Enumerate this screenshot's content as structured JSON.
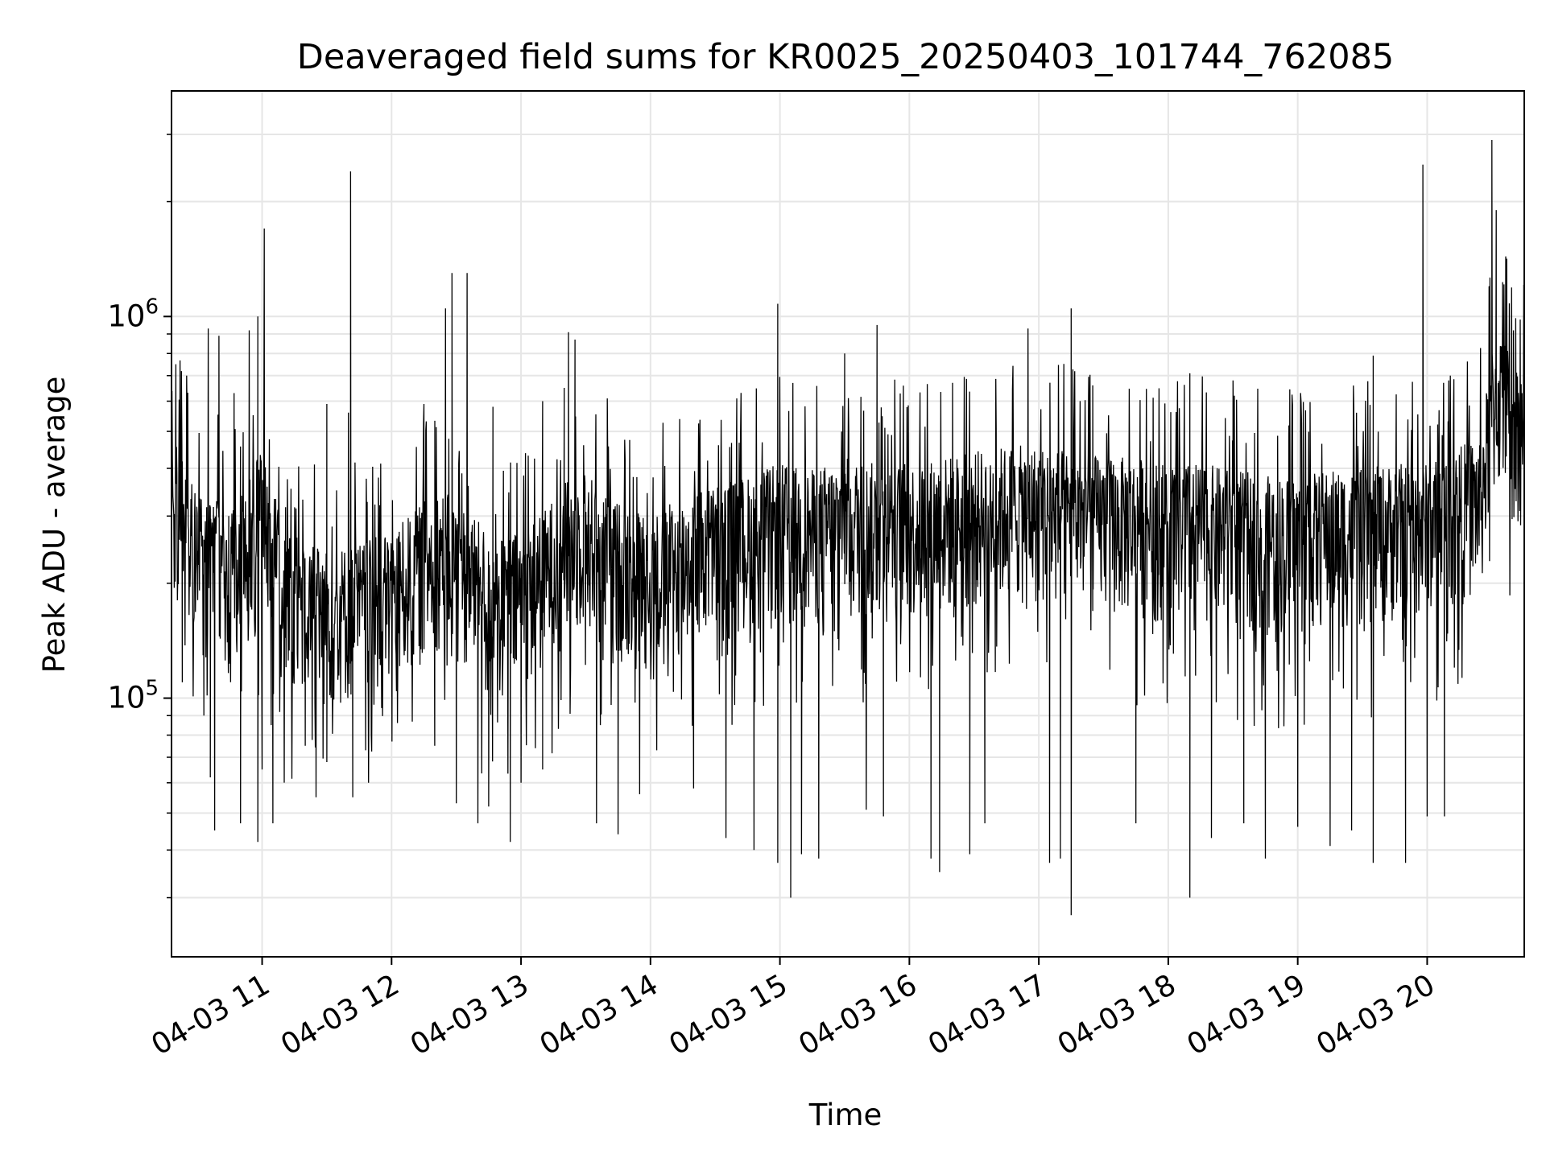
{
  "chart_data": {
    "type": "line",
    "title": "Deaveraged field sums for KR0025_20250403_101744_762085",
    "xlabel": "Time",
    "ylabel": "Peak ADU - average",
    "x_range": [
      "2025-04-03 10:18",
      "2025-04-03 20:45"
    ],
    "ylim": [
      21000,
      3900000
    ],
    "y_scale": "log",
    "grid": true,
    "legend": "none",
    "line_color": "#000000",
    "x_ticks": [
      {
        "time": "2025-04-03 11:00",
        "label": "04-03 11"
      },
      {
        "time": "2025-04-03 12:00",
        "label": "04-03 12"
      },
      {
        "time": "2025-04-03 13:00",
        "label": "04-03 13"
      },
      {
        "time": "2025-04-03 14:00",
        "label": "04-03 14"
      },
      {
        "time": "2025-04-03 15:00",
        "label": "04-03 15"
      },
      {
        "time": "2025-04-03 16:00",
        "label": "04-03 16"
      },
      {
        "time": "2025-04-03 17:00",
        "label": "04-03 17"
      },
      {
        "time": "2025-04-03 18:00",
        "label": "04-03 18"
      },
      {
        "time": "2025-04-03 19:00",
        "label": "04-03 19"
      },
      {
        "time": "2025-04-03 20:00",
        "label": "04-03 20"
      }
    ],
    "y_ticks": [
      {
        "value": 100000,
        "base": "10",
        "exp": "5"
      },
      {
        "value": 1000000,
        "base": "10",
        "exp": "6"
      }
    ],
    "series": [
      {
        "points": [
          [
            "2025-04-03 10:18",
            300000
          ],
          [
            "2025-04-03 10:24",
            320000
          ],
          [
            "2025-04-03 10:31",
            220000
          ],
          [
            "2025-04-03 10:38",
            250000
          ],
          [
            "2025-04-03 10:45",
            200000
          ],
          [
            "2025-04-03 10:52",
            230000
          ],
          [
            "2025-04-03 11:00",
            300000
          ],
          [
            "2025-04-03 11:10",
            180000
          ],
          [
            "2025-04-03 11:20",
            170000
          ],
          [
            "2025-04-03 11:30",
            160000
          ],
          [
            "2025-04-03 11:40",
            165000
          ],
          [
            "2025-04-03 11:50",
            170000
          ],
          [
            "2025-04-03 12:00",
            180000
          ],
          [
            "2025-04-03 12:10",
            200000
          ],
          [
            "2025-04-03 12:20",
            230000
          ],
          [
            "2025-04-03 12:30",
            220000
          ],
          [
            "2025-04-03 12:40",
            190000
          ],
          [
            "2025-04-03 12:50",
            170000
          ],
          [
            "2025-04-03 13:00",
            180000
          ],
          [
            "2025-04-03 13:10",
            200000
          ],
          [
            "2025-04-03 13:20",
            240000
          ],
          [
            "2025-04-03 13:30",
            260000
          ],
          [
            "2025-04-03 13:40",
            220000
          ],
          [
            "2025-04-03 13:50",
            210000
          ],
          [
            "2025-04-03 14:00",
            200000
          ],
          [
            "2025-04-03 14:15",
            220000
          ],
          [
            "2025-04-03 14:30",
            240000
          ],
          [
            "2025-04-03 14:45",
            250000
          ],
          [
            "2025-04-03 15:00",
            270000
          ],
          [
            "2025-04-03 15:15",
            260000
          ],
          [
            "2025-04-03 15:30",
            280000
          ],
          [
            "2025-04-03 15:45",
            270000
          ],
          [
            "2025-04-03 16:00",
            270000
          ],
          [
            "2025-04-03 16:15",
            280000
          ],
          [
            "2025-04-03 16:30",
            290000
          ],
          [
            "2025-04-03 16:45",
            300000
          ],
          [
            "2025-04-03 17:00",
            300000
          ],
          [
            "2025-04-03 17:15",
            290000
          ],
          [
            "2025-04-03 17:30",
            280000
          ],
          [
            "2025-04-03 17:45",
            280000
          ],
          [
            "2025-04-03 18:00",
            270000
          ],
          [
            "2025-04-03 18:15",
            270000
          ],
          [
            "2025-04-03 18:30",
            260000
          ],
          [
            "2025-04-03 18:45",
            250000
          ],
          [
            "2025-04-03 19:00",
            250000
          ],
          [
            "2025-04-03 19:15",
            260000
          ],
          [
            "2025-04-03 19:30",
            260000
          ],
          [
            "2025-04-03 19:45",
            270000
          ],
          [
            "2025-04-03 20:00",
            270000
          ],
          [
            "2025-04-03 20:15",
            300000
          ],
          [
            "2025-04-03 20:25",
            320000
          ],
          [
            "2025-04-03 20:30",
            550000
          ],
          [
            "2025-04-03 20:35",
            600000
          ],
          [
            "2025-04-03 20:40",
            500000
          ],
          [
            "2025-04-03 20:45",
            480000
          ]
        ],
        "peaks": [
          [
            "2025-04-03 10:20",
            750000
          ],
          [
            "2025-04-03 10:25",
            700000
          ],
          [
            "2025-04-03 10:35",
            930000
          ],
          [
            "2025-04-03 10:40",
            890000
          ],
          [
            "2025-04-03 10:47",
            630000
          ],
          [
            "2025-04-03 10:54",
            920000
          ],
          [
            "2025-04-03 10:58",
            1000000
          ],
          [
            "2025-04-03 11:01",
            1700000
          ],
          [
            "2025-04-03 11:30",
            590000
          ],
          [
            "2025-04-03 11:40",
            560000
          ],
          [
            "2025-04-03 11:41",
            2400000
          ],
          [
            "2025-04-03 12:15",
            590000
          ],
          [
            "2025-04-03 12:25",
            1050000
          ],
          [
            "2025-04-03 12:28",
            1300000
          ],
          [
            "2025-04-03 12:35",
            1300000
          ],
          [
            "2025-04-03 12:47",
            580000
          ],
          [
            "2025-04-03 13:10",
            600000
          ],
          [
            "2025-04-03 13:20",
            650000
          ],
          [
            "2025-04-03 13:22",
            910000
          ],
          [
            "2025-04-03 13:25",
            870000
          ],
          [
            "2025-04-03 13:40",
            610000
          ],
          [
            "2025-04-03 14:40",
            610000
          ],
          [
            "2025-04-03 14:59",
            1080000
          ],
          [
            "2025-04-03 15:30",
            800000
          ],
          [
            "2025-04-03 15:45",
            950000
          ],
          [
            "2025-04-03 16:20",
            670000
          ],
          [
            "2025-04-03 16:55",
            930000
          ],
          [
            "2025-04-03 17:15",
            1050000
          ],
          [
            "2025-04-03 17:25",
            660000
          ],
          [
            "2025-04-03 18:10",
            710000
          ],
          [
            "2025-04-03 18:30",
            680000
          ],
          [
            "2025-04-03 19:35",
            790000
          ],
          [
            "2025-04-03 19:58",
            2500000
          ],
          [
            "2025-04-03 20:10",
            680000
          ],
          [
            "2025-04-03 20:30",
            2900000
          ],
          [
            "2025-04-03 20:32",
            1900000
          ],
          [
            "2025-04-03 20:40",
            920000
          ]
        ],
        "dips": [
          [
            "2025-04-03 10:23",
            110000
          ],
          [
            "2025-04-03 10:33",
            90000
          ],
          [
            "2025-04-03 10:36",
            62000
          ],
          [
            "2025-04-03 10:38",
            45000
          ],
          [
            "2025-04-03 10:50",
            47000
          ],
          [
            "2025-04-03 10:58",
            42000
          ],
          [
            "2025-04-03 11:00",
            65000
          ],
          [
            "2025-04-03 11:05",
            47000
          ],
          [
            "2025-04-03 11:20",
            75000
          ],
          [
            "2025-04-03 11:25",
            55000
          ],
          [
            "2025-04-03 11:30",
            68000
          ],
          [
            "2025-04-03 11:42",
            55000
          ],
          [
            "2025-04-03 11:48",
            73000
          ],
          [
            "2025-04-03 12:20",
            75000
          ],
          [
            "2025-04-03 12:30",
            53000
          ],
          [
            "2025-04-03 12:40",
            47000
          ],
          [
            "2025-04-03 12:45",
            52000
          ],
          [
            "2025-04-03 12:55",
            42000
          ],
          [
            "2025-04-03 13:00",
            60000
          ],
          [
            "2025-04-03 13:10",
            65000
          ],
          [
            "2025-04-03 13:35",
            47000
          ],
          [
            "2025-04-03 13:45",
            44000
          ],
          [
            "2025-04-03 13:55",
            56000
          ],
          [
            "2025-04-03 14:20",
            58000
          ],
          [
            "2025-04-03 14:35",
            43000
          ],
          [
            "2025-04-03 14:48",
            40000
          ],
          [
            "2025-04-03 14:59",
            37000
          ],
          [
            "2025-04-03 15:05",
            30000
          ],
          [
            "2025-04-03 15:10",
            39000
          ],
          [
            "2025-04-03 15:18",
            38000
          ],
          [
            "2025-04-03 15:40",
            51000
          ],
          [
            "2025-04-03 15:48",
            49000
          ],
          [
            "2025-04-03 16:10",
            38000
          ],
          [
            "2025-04-03 16:14",
            35000
          ],
          [
            "2025-04-03 16:28",
            39000
          ],
          [
            "2025-04-03 16:35",
            47000
          ],
          [
            "2025-04-03 17:05",
            37000
          ],
          [
            "2025-04-03 17:10",
            38000
          ],
          [
            "2025-04-03 17:15",
            27000
          ],
          [
            "2025-04-03 17:45",
            47000
          ],
          [
            "2025-04-03 18:10",
            30000
          ],
          [
            "2025-04-03 18:20",
            43000
          ],
          [
            "2025-04-03 18:35",
            47000
          ],
          [
            "2025-04-03 18:45",
            38000
          ],
          [
            "2025-04-03 19:00",
            46000
          ],
          [
            "2025-04-03 19:15",
            41000
          ],
          [
            "2025-04-03 19:25",
            45000
          ],
          [
            "2025-04-03 19:35",
            37000
          ],
          [
            "2025-04-03 19:50",
            37000
          ],
          [
            "2025-04-03 20:00",
            49000
          ],
          [
            "2025-04-03 20:08",
            49000
          ]
        ]
      }
    ]
  }
}
